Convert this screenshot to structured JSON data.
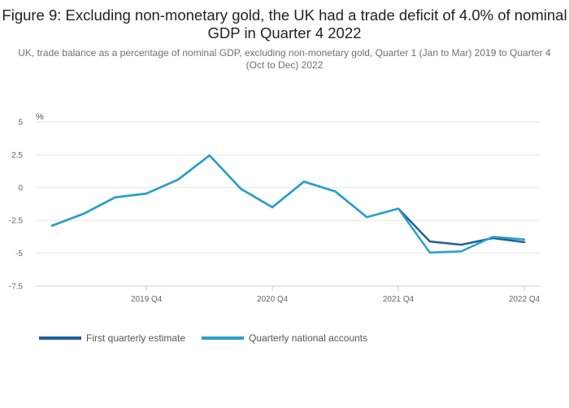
{
  "title": "Figure 9: Excluding non-monetary gold, the UK had a trade deficit of 4.0% of nominal GDP in Quarter 4 2022",
  "subtitle": "UK, trade balance as a percentage of nominal GDP, excluding non-monetary gold, Quarter 1 (Jan to Mar) 2019 to Quarter 4 (Oct to Dec) 2022",
  "chart_data": {
    "type": "line",
    "ylabel": "%",
    "ylim": [
      -7.5,
      5
    ],
    "yticks": [
      5,
      2.5,
      0,
      -2.5,
      -5,
      -7.5
    ],
    "ytick_labels": [
      "5",
      "2.5",
      "0",
      "-2.5",
      "-5",
      "-7.5"
    ],
    "x": [
      "2019 Q1",
      "2019 Q2",
      "2019 Q3",
      "2019 Q4",
      "2020 Q1",
      "2020 Q2",
      "2020 Q3",
      "2020 Q4",
      "2021 Q1",
      "2021 Q2",
      "2021 Q3",
      "2021 Q4",
      "2022 Q1",
      "2022 Q2",
      "2022 Q3",
      "2022 Q4"
    ],
    "xtick_labels": [
      "2019 Q4",
      "2020 Q4",
      "2021 Q4",
      "2022 Q4"
    ],
    "grid": true,
    "legend_position": "bottom-left",
    "series": [
      {
        "name": "First quarterly estimate",
        "color": "#206095",
        "values": [
          -2.9,
          -2.0,
          -0.75,
          -0.45,
          0.6,
          2.45,
          -0.1,
          -1.5,
          0.45,
          -0.3,
          -2.25,
          -1.6,
          -4.1,
          -4.35,
          -3.85,
          -4.15
        ]
      },
      {
        "name": "Quarterly national accounts",
        "color": "#27A0CC",
        "values": [
          -2.9,
          -2.0,
          -0.75,
          -0.45,
          0.6,
          2.45,
          -0.1,
          -1.5,
          0.45,
          -0.3,
          -2.25,
          -1.6,
          -4.95,
          -4.85,
          -3.75,
          -3.95
        ]
      }
    ]
  }
}
